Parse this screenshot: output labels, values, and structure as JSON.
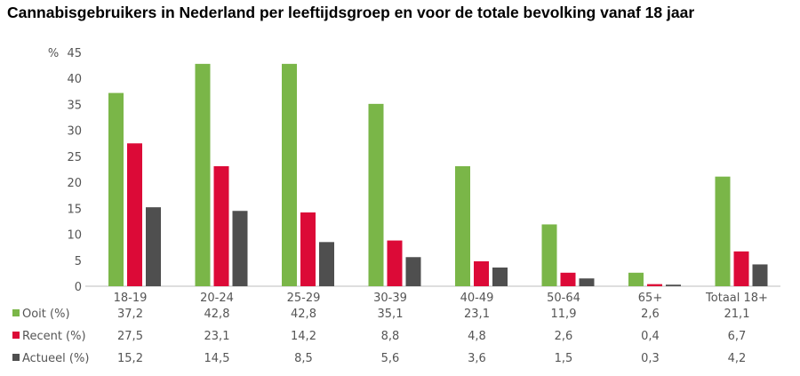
{
  "chart_data": {
    "type": "bar",
    "title": "Cannabisgebruikers in Nederland per leeftijdsgroep en voor de totale bevolking vanaf 18 jaar",
    "ylabel": "%",
    "ylim": [
      0,
      45
    ],
    "yticks": [
      0,
      5,
      10,
      15,
      20,
      25,
      30,
      35,
      40,
      45
    ],
    "grid": false,
    "legend": "table-left",
    "categories": [
      "18-19",
      "20-24",
      "25-29",
      "30-39",
      "40-49",
      "50-64",
      "65+",
      "Totaal 18+"
    ],
    "series": [
      {
        "name": "Ooit (%)",
        "color": "#7ab648",
        "values": [
          37.2,
          42.8,
          42.8,
          35.1,
          23.1,
          11.9,
          2.6,
          21.1
        ],
        "labels": [
          "37,2",
          "42,8",
          "42,8",
          "35,1",
          "23,1",
          "11,9",
          "2,6",
          "21,1"
        ]
      },
      {
        "name": "Recent (%)",
        "color": "#dc0a37",
        "values": [
          27.5,
          23.1,
          14.2,
          8.8,
          4.8,
          2.6,
          0.4,
          6.7
        ],
        "labels": [
          "27,5",
          "23,1",
          "14,2",
          "8,8",
          "4,8",
          "2,6",
          "0,4",
          "6,7"
        ]
      },
      {
        "name": "Actueel (%)",
        "color": "#4f4f4f",
        "values": [
          15.2,
          14.5,
          8.5,
          5.6,
          3.6,
          1.5,
          0.3,
          4.2
        ],
        "labels": [
          "15,2",
          "14,5",
          "8,5",
          "5,6",
          "3,6",
          "1,5",
          "0,3",
          "4,2"
        ]
      }
    ]
  }
}
